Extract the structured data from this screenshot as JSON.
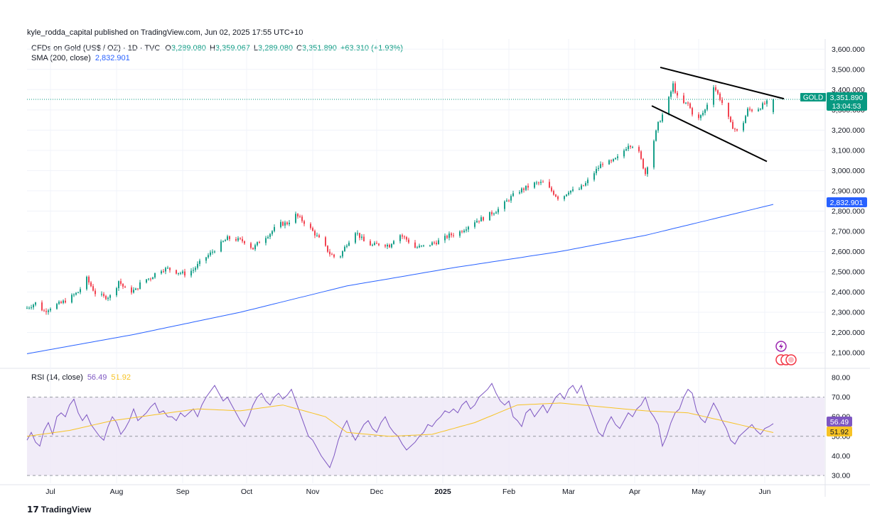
{
  "publisher": "kyle_rodda_capital published on TradingView.com, Jun 02, 2025 17:55 UTC+10",
  "legend": {
    "symbol": "CFDs on Gold (US$ / OZ) · 1D · TVC",
    "o_label": "O",
    "o_value": "3,289.080",
    "h_label": "H",
    "h_value": "3,359.067",
    "l_label": "L",
    "l_value": "3,289.080",
    "c_label": "C",
    "c_value": "3,351.890",
    "change": "+63.310 (+1.93%)",
    "sma_label": "SMA (200, close)",
    "sma_value": "2,832.901",
    "rsi_label": "RSI (14, close)",
    "rsi_value": "56.49",
    "rsi_ma_value": "51.92"
  },
  "badges": {
    "symbol_tag": "GOLD",
    "price": "3,351.890",
    "countdown": "13:04:53",
    "sma": "2,832.901",
    "rsi": "56.49",
    "rsi_ma": "51.92"
  },
  "footer": {
    "brand": "TradingView"
  },
  "colors": {
    "up": "#089981",
    "down": "#f23645",
    "sma": "#2962ff",
    "rsi": "#7e57c2",
    "rsi_ma": "#f7c325",
    "band": "#ede7f6"
  },
  "chart_data": {
    "type": "candlestick",
    "price_axis": {
      "range": [
        2030,
        3650
      ],
      "ticks": [
        3600,
        3500,
        3400,
        3300,
        3200,
        3100,
        3000,
        2900,
        2800,
        2700,
        2600,
        2500,
        2400,
        2300,
        2200,
        2100
      ],
      "tick_labels": [
        "3,600.000",
        "3,500.000",
        "3,400.000",
        "3,300.000",
        "3,200.000",
        "3,100.000",
        "3,000.000",
        "2,900.000",
        "2,800.000",
        "2,700.000",
        "2,600.000",
        "2,500.000",
        "2,400.000",
        "2,300.000",
        "2,200.000",
        "2,100.000"
      ]
    },
    "rsi_axis": {
      "range": [
        26,
        84
      ],
      "ticks": [
        80,
        70,
        60,
        50,
        40,
        30
      ],
      "tick_labels": [
        "80.00",
        "70.00",
        "60.00",
        "50.00",
        "40.00",
        "30.00"
      ],
      "band": [
        30,
        70
      ]
    },
    "time_axis": {
      "labels": [
        "Jul",
        "Aug",
        "Sep",
        "Oct",
        "Nov",
        "Dec",
        "2025",
        "Feb",
        "Mar",
        "Apr",
        "May",
        "Jun"
      ],
      "label_days": [
        11,
        42,
        73,
        103,
        134,
        164,
        195,
        226,
        254,
        285,
        315,
        346
      ]
    },
    "last_price": 3351.89,
    "ohlc_points": [
      [
        0,
        2322
      ],
      [
        4,
        2345
      ],
      [
        8,
        2305
      ],
      [
        12,
        2330
      ],
      [
        16,
        2345
      ],
      [
        20,
        2370
      ],
      [
        24,
        2400
      ],
      [
        28,
        2465
      ],
      [
        32,
        2395
      ],
      [
        36,
        2375
      ],
      [
        40,
        2380
      ],
      [
        43,
        2455
      ],
      [
        47,
        2400
      ],
      [
        51,
        2410
      ],
      [
        54,
        2455
      ],
      [
        58,
        2470
      ],
      [
        62,
        2510
      ],
      [
        66,
        2515
      ],
      [
        70,
        2500
      ],
      [
        74,
        2490
      ],
      [
        78,
        2510
      ],
      [
        82,
        2555
      ],
      [
        86,
        2590
      ],
      [
        90,
        2630
      ],
      [
        94,
        2665
      ],
      [
        98,
        2660
      ],
      [
        102,
        2650
      ],
      [
        106,
        2615
      ],
      [
        110,
        2660
      ],
      [
        114,
        2690
      ],
      [
        118,
        2735
      ],
      [
        122,
        2740
      ],
      [
        126,
        2780
      ],
      [
        130,
        2745
      ],
      [
        134,
        2700
      ],
      [
        138,
        2650
      ],
      [
        142,
        2590
      ],
      [
        146,
        2560
      ],
      [
        150,
        2640
      ],
      [
        154,
        2700
      ],
      [
        158,
        2650
      ],
      [
        162,
        2630
      ],
      [
        166,
        2640
      ],
      [
        170,
        2630
      ],
      [
        174,
        2690
      ],
      [
        178,
        2660
      ],
      [
        182,
        2620
      ],
      [
        186,
        2625
      ],
      [
        190,
        2640
      ],
      [
        194,
        2655
      ],
      [
        198,
        2680
      ],
      [
        202,
        2690
      ],
      [
        206,
        2720
      ],
      [
        210,
        2750
      ],
      [
        214,
        2765
      ],
      [
        218,
        2790
      ],
      [
        222,
        2815
      ],
      [
        226,
        2860
      ],
      [
        230,
        2895
      ],
      [
        234,
        2915
      ],
      [
        238,
        2935
      ],
      [
        242,
        2940
      ],
      [
        246,
        2900
      ],
      [
        250,
        2855
      ],
      [
        254,
        2900
      ],
      [
        258,
        2900
      ],
      [
        262,
        2935
      ],
      [
        266,
        2990
      ],
      [
        270,
        3040
      ],
      [
        274,
        3040
      ],
      [
        278,
        3070
      ],
      [
        282,
        3130
      ],
      [
        286,
        3120
      ],
      [
        290,
        2985
      ],
      [
        293,
        3110
      ],
      [
        296,
        3230
      ],
      [
        300,
        3320
      ],
      [
        303,
        3425
      ],
      [
        306,
        3330
      ],
      [
        310,
        3330
      ],
      [
        314,
        3240
      ],
      [
        318,
        3300
      ],
      [
        322,
        3420
      ],
      [
        326,
        3335
      ],
      [
        330,
        3230
      ],
      [
        334,
        3180
      ],
      [
        338,
        3300
      ],
      [
        342,
        3300
      ],
      [
        346,
        3330
      ],
      [
        350,
        3352
      ]
    ],
    "sma_200": [
      [
        0,
        2095
      ],
      [
        50,
        2190
      ],
      [
        100,
        2300
      ],
      [
        150,
        2430
      ],
      [
        200,
        2520
      ],
      [
        250,
        2600
      ],
      [
        290,
        2680
      ],
      [
        350,
        2833
      ]
    ],
    "rsi_14": [
      [
        0,
        48
      ],
      [
        2,
        52
      ],
      [
        4,
        47
      ],
      [
        6,
        45
      ],
      [
        8,
        53
      ],
      [
        10,
        57
      ],
      [
        12,
        51
      ],
      [
        14,
        60
      ],
      [
        16,
        62
      ],
      [
        18,
        60
      ],
      [
        20,
        66
      ],
      [
        22,
        69
      ],
      [
        24,
        62
      ],
      [
        26,
        58
      ],
      [
        28,
        61
      ],
      [
        30,
        56
      ],
      [
        32,
        53
      ],
      [
        34,
        50
      ],
      [
        36,
        48
      ],
      [
        38,
        55
      ],
      [
        40,
        60
      ],
      [
        42,
        57
      ],
      [
        44,
        51
      ],
      [
        46,
        54
      ],
      [
        48,
        58
      ],
      [
        50,
        64
      ],
      [
        52,
        58
      ],
      [
        54,
        60
      ],
      [
        56,
        62
      ],
      [
        58,
        65
      ],
      [
        60,
        67
      ],
      [
        62,
        62
      ],
      [
        64,
        63
      ],
      [
        66,
        60
      ],
      [
        68,
        60
      ],
      [
        70,
        58
      ],
      [
        72,
        62
      ],
      [
        74,
        60
      ],
      [
        76,
        62
      ],
      [
        78,
        64
      ],
      [
        80,
        60
      ],
      [
        82,
        66
      ],
      [
        84,
        70
      ],
      [
        86,
        73
      ],
      [
        88,
        76
      ],
      [
        90,
        72
      ],
      [
        92,
        68
      ],
      [
        94,
        70
      ],
      [
        96,
        66
      ],
      [
        98,
        62
      ],
      [
        100,
        58
      ],
      [
        102,
        55
      ],
      [
        104,
        60
      ],
      [
        106,
        66
      ],
      [
        108,
        70
      ],
      [
        110,
        72
      ],
      [
        112,
        68
      ],
      [
        114,
        66
      ],
      [
        116,
        70
      ],
      [
        118,
        72
      ],
      [
        120,
        69
      ],
      [
        122,
        71
      ],
      [
        124,
        74
      ],
      [
        126,
        68
      ],
      [
        128,
        62
      ],
      [
        130,
        56
      ],
      [
        132,
        50
      ],
      [
        134,
        48
      ],
      [
        136,
        44
      ],
      [
        138,
        40
      ],
      [
        140,
        37
      ],
      [
        142,
        34
      ],
      [
        144,
        40
      ],
      [
        146,
        48
      ],
      [
        148,
        54
      ],
      [
        150,
        58
      ],
      [
        152,
        52
      ],
      [
        154,
        48
      ],
      [
        156,
        52
      ],
      [
        158,
        56
      ],
      [
        160,
        58
      ],
      [
        162,
        54
      ],
      [
        164,
        52
      ],
      [
        166,
        57
      ],
      [
        168,
        60
      ],
      [
        170,
        55
      ],
      [
        172,
        52
      ],
      [
        174,
        50
      ],
      [
        176,
        46
      ],
      [
        178,
        43
      ],
      [
        180,
        45
      ],
      [
        182,
        47
      ],
      [
        184,
        50
      ],
      [
        186,
        52
      ],
      [
        188,
        56
      ],
      [
        190,
        55
      ],
      [
        192,
        58
      ],
      [
        194,
        60
      ],
      [
        196,
        63
      ],
      [
        198,
        62
      ],
      [
        200,
        64
      ],
      [
        202,
        62
      ],
      [
        204,
        66
      ],
      [
        206,
        68
      ],
      [
        208,
        64
      ],
      [
        210,
        66
      ],
      [
        212,
        70
      ],
      [
        214,
        72
      ],
      [
        216,
        74
      ],
      [
        218,
        77
      ],
      [
        220,
        72
      ],
      [
        222,
        68
      ],
      [
        224,
        66
      ],
      [
        226,
        68
      ],
      [
        228,
        60
      ],
      [
        230,
        58
      ],
      [
        232,
        55
      ],
      [
        234,
        62
      ],
      [
        236,
        64
      ],
      [
        238,
        60
      ],
      [
        240,
        63
      ],
      [
        242,
        66
      ],
      [
        244,
        62
      ],
      [
        246,
        66
      ],
      [
        248,
        70
      ],
      [
        250,
        72
      ],
      [
        252,
        69
      ],
      [
        254,
        74
      ],
      [
        256,
        76
      ],
      [
        258,
        72
      ],
      [
        260,
        76
      ],
      [
        262,
        69
      ],
      [
        264,
        64
      ],
      [
        266,
        58
      ],
      [
        268,
        52
      ],
      [
        270,
        50
      ],
      [
        272,
        56
      ],
      [
        274,
        60
      ],
      [
        276,
        56
      ],
      [
        278,
        54
      ],
      [
        280,
        58
      ],
      [
        282,
        62
      ],
      [
        284,
        60
      ],
      [
        286,
        64
      ],
      [
        288,
        66
      ],
      [
        290,
        70
      ],
      [
        292,
        63
      ],
      [
        294,
        60
      ],
      [
        296,
        56
      ],
      [
        298,
        45
      ],
      [
        300,
        50
      ],
      [
        302,
        57
      ],
      [
        304,
        62
      ],
      [
        306,
        64
      ],
      [
        308,
        70
      ],
      [
        310,
        74
      ],
      [
        312,
        72
      ],
      [
        314,
        63
      ],
      [
        316,
        59
      ],
      [
        318,
        57
      ],
      [
        320,
        62
      ],
      [
        322,
        67
      ],
      [
        324,
        63
      ],
      [
        326,
        58
      ],
      [
        328,
        54
      ],
      [
        330,
        48
      ],
      [
        332,
        46
      ],
      [
        334,
        50
      ],
      [
        336,
        52
      ],
      [
        338,
        54
      ],
      [
        340,
        56
      ],
      [
        342,
        53
      ],
      [
        344,
        51
      ],
      [
        346,
        54
      ],
      [
        348,
        55
      ],
      [
        350,
        56.49
      ]
    ],
    "rsi_ma": [
      [
        0,
        50
      ],
      [
        20,
        53
      ],
      [
        40,
        58
      ],
      [
        60,
        61
      ],
      [
        80,
        64
      ],
      [
        100,
        63
      ],
      [
        120,
        66
      ],
      [
        140,
        60
      ],
      [
        150,
        52
      ],
      [
        170,
        50
      ],
      [
        190,
        51
      ],
      [
        210,
        57
      ],
      [
        230,
        66
      ],
      [
        250,
        67
      ],
      [
        270,
        65
      ],
      [
        290,
        63
      ],
      [
        310,
        62
      ],
      [
        330,
        57
      ],
      [
        350,
        51.92
      ]
    ],
    "annotations": [
      {
        "type": "trendline",
        "points": [
          [
            297,
            3510
          ],
          [
            355,
            3355
          ]
        ]
      },
      {
        "type": "trendline",
        "points": [
          [
            293,
            3320
          ],
          [
            347,
            3045
          ]
        ]
      }
    ],
    "grid": true
  }
}
